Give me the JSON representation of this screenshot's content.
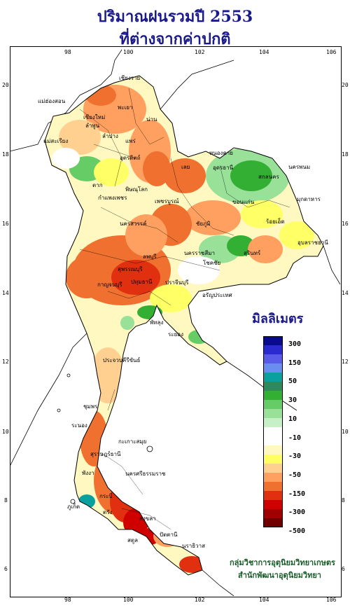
{
  "title": {
    "line1": "ปริมาณฝนรวมปี  2553",
    "line2": "ที่ต่างจากค่าปกติ"
  },
  "axes": {
    "x_ticks": [
      "98",
      "100",
      "102",
      "104",
      "106"
    ],
    "y_ticks": [
      "20",
      "18",
      "16",
      "14",
      "12",
      "10",
      "8",
      "6"
    ]
  },
  "legend": {
    "title": "มิลลิเมตร",
    "labels": [
      "300",
      "150",
      "50",
      "30",
      "10",
      "-10",
      "-30",
      "-50",
      "-150",
      "-300",
      "-500"
    ],
    "colors": [
      "#0a0a8c",
      "#2a2ad0",
      "#5a5ae8",
      "#6a8ef0",
      "#0aa0a0",
      "#2e8a5a",
      "#33b033",
      "#66cc66",
      "#99e099",
      "#c8f0c8",
      "#ffffff",
      "#ffffff",
      "#fff8c0",
      "#ffff66",
      "#ffd090",
      "#ffa060",
      "#f07030",
      "#e03010",
      "#d00000",
      "#a00000",
      "#700000"
    ]
  },
  "places": [
    "เชียงราย",
    "แม่ฮ่องสอน",
    "เชียงใหม่",
    "พะเยา",
    "น่าน",
    "ลำพูน",
    "ลำปาง",
    "แพร่",
    "แม่สะเรียง",
    "อุตรดิตถ์",
    "หนองคาย",
    "อุดรธานี",
    "สกลนคร",
    "นครพนม",
    "เลย",
    "ตาก",
    "พิษณุโลก",
    "มุกดาหาร",
    "ขอนแก่น",
    "กำแพงเพชร",
    "เพชรบูรณ์",
    "นครสวรรค์",
    "ชัยภูมิ",
    "ร้อยเอ็ด",
    "อุบลราชธานี",
    "สุรินทร์",
    "นครราชสีมา",
    "โชคชัย",
    "ลพบุรี",
    "สุพรรณบุรี",
    "กาญจนบุรี",
    "ปทุมธานี",
    "ปราจีนบุรี",
    "อรัญประเทศ",
    "ระยอง",
    "พัทลุง",
    "ประจวบคีรีขันธ์",
    "ชุมพร",
    "ระนอง",
    "สุราษฎร์ธานี",
    "กะเกาะสมุย",
    "นครศรีธรรมราช",
    "พังงา",
    "ภูเก็ต",
    "กระบี่",
    "ตรัง",
    "สงขลา",
    "ปัตตานี",
    "นราธิวาส",
    "สตูล"
  ],
  "credit": {
    "line1": "กลุ่มวิชาการอุตุนิยมวิทยาเกษตร",
    "line2": "สำนักพัฒนาอุตุนิยมวิทยา"
  }
}
